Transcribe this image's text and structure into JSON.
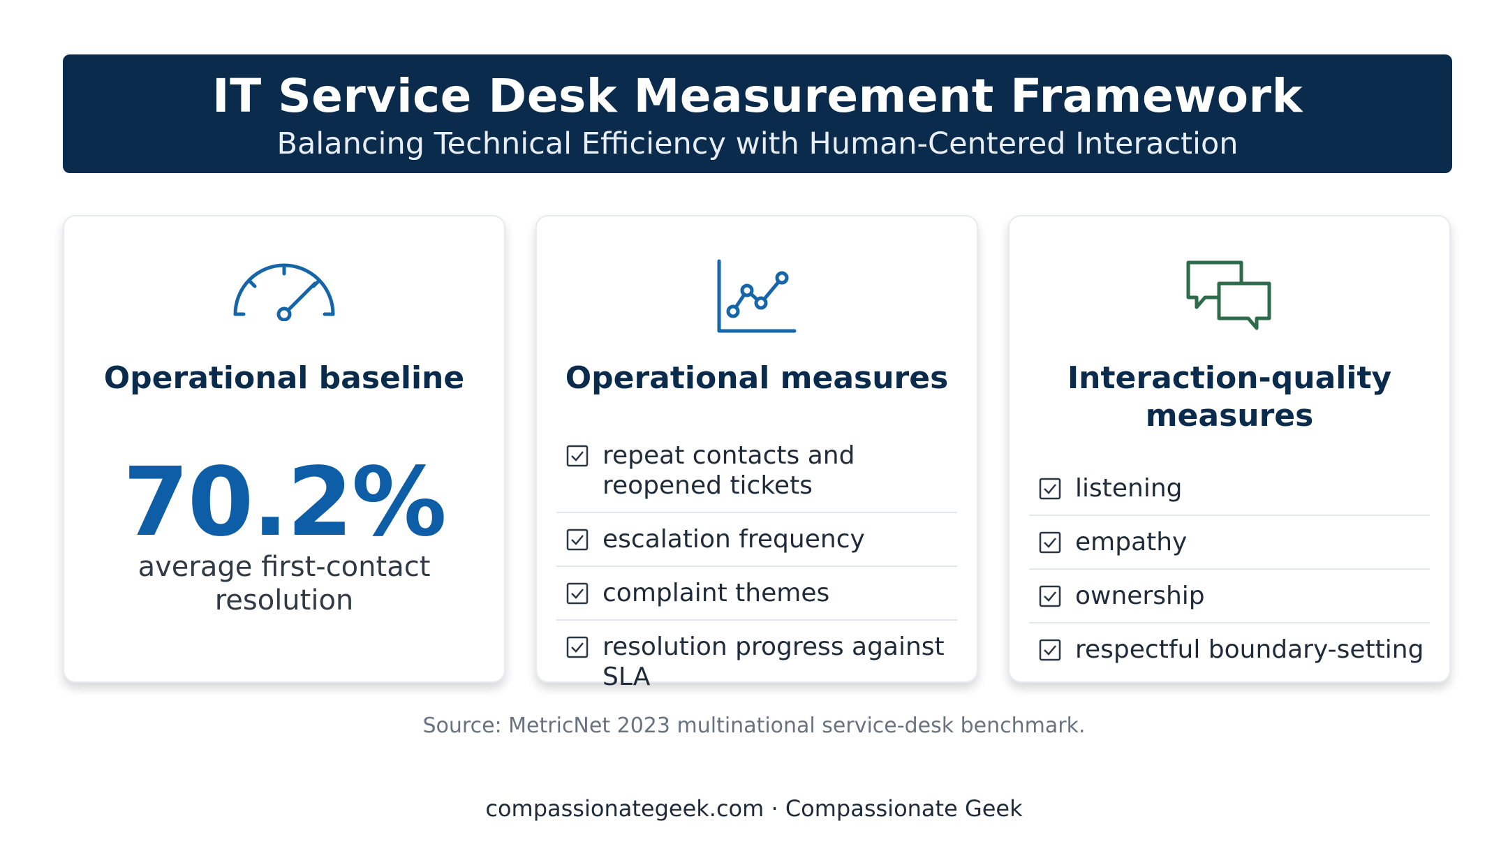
{
  "header": {
    "title": "IT Service Desk Measurement Framework",
    "subtitle": "Balancing Technical Efficiency with Human-Centered Interaction"
  },
  "cards": [
    {
      "icon": "speedometer-icon",
      "heading": "Operational baseline",
      "stat_value": "70.2%",
      "stat_label": "average first-contact resolution"
    },
    {
      "icon": "line-chart-icon",
      "heading": "Operational measures",
      "items": [
        "repeat contacts and reopened tickets",
        "escalation frequency",
        "complaint themes",
        "resolution progress against SLA"
      ]
    },
    {
      "icon": "chat-bubbles-icon",
      "heading": "Interaction-quality measures",
      "items": [
        "listening",
        "empathy",
        "ownership",
        "respectful boundary-setting"
      ]
    }
  ],
  "source": "Source: MetricNet 2023 multinational service-desk benchmark.",
  "footer": "compassionategeek.com · Compassionate Geek",
  "colors": {
    "banner": "#0b2b4c",
    "stat": "#0d5ea6",
    "chat_icon": "#2e6b4a"
  }
}
